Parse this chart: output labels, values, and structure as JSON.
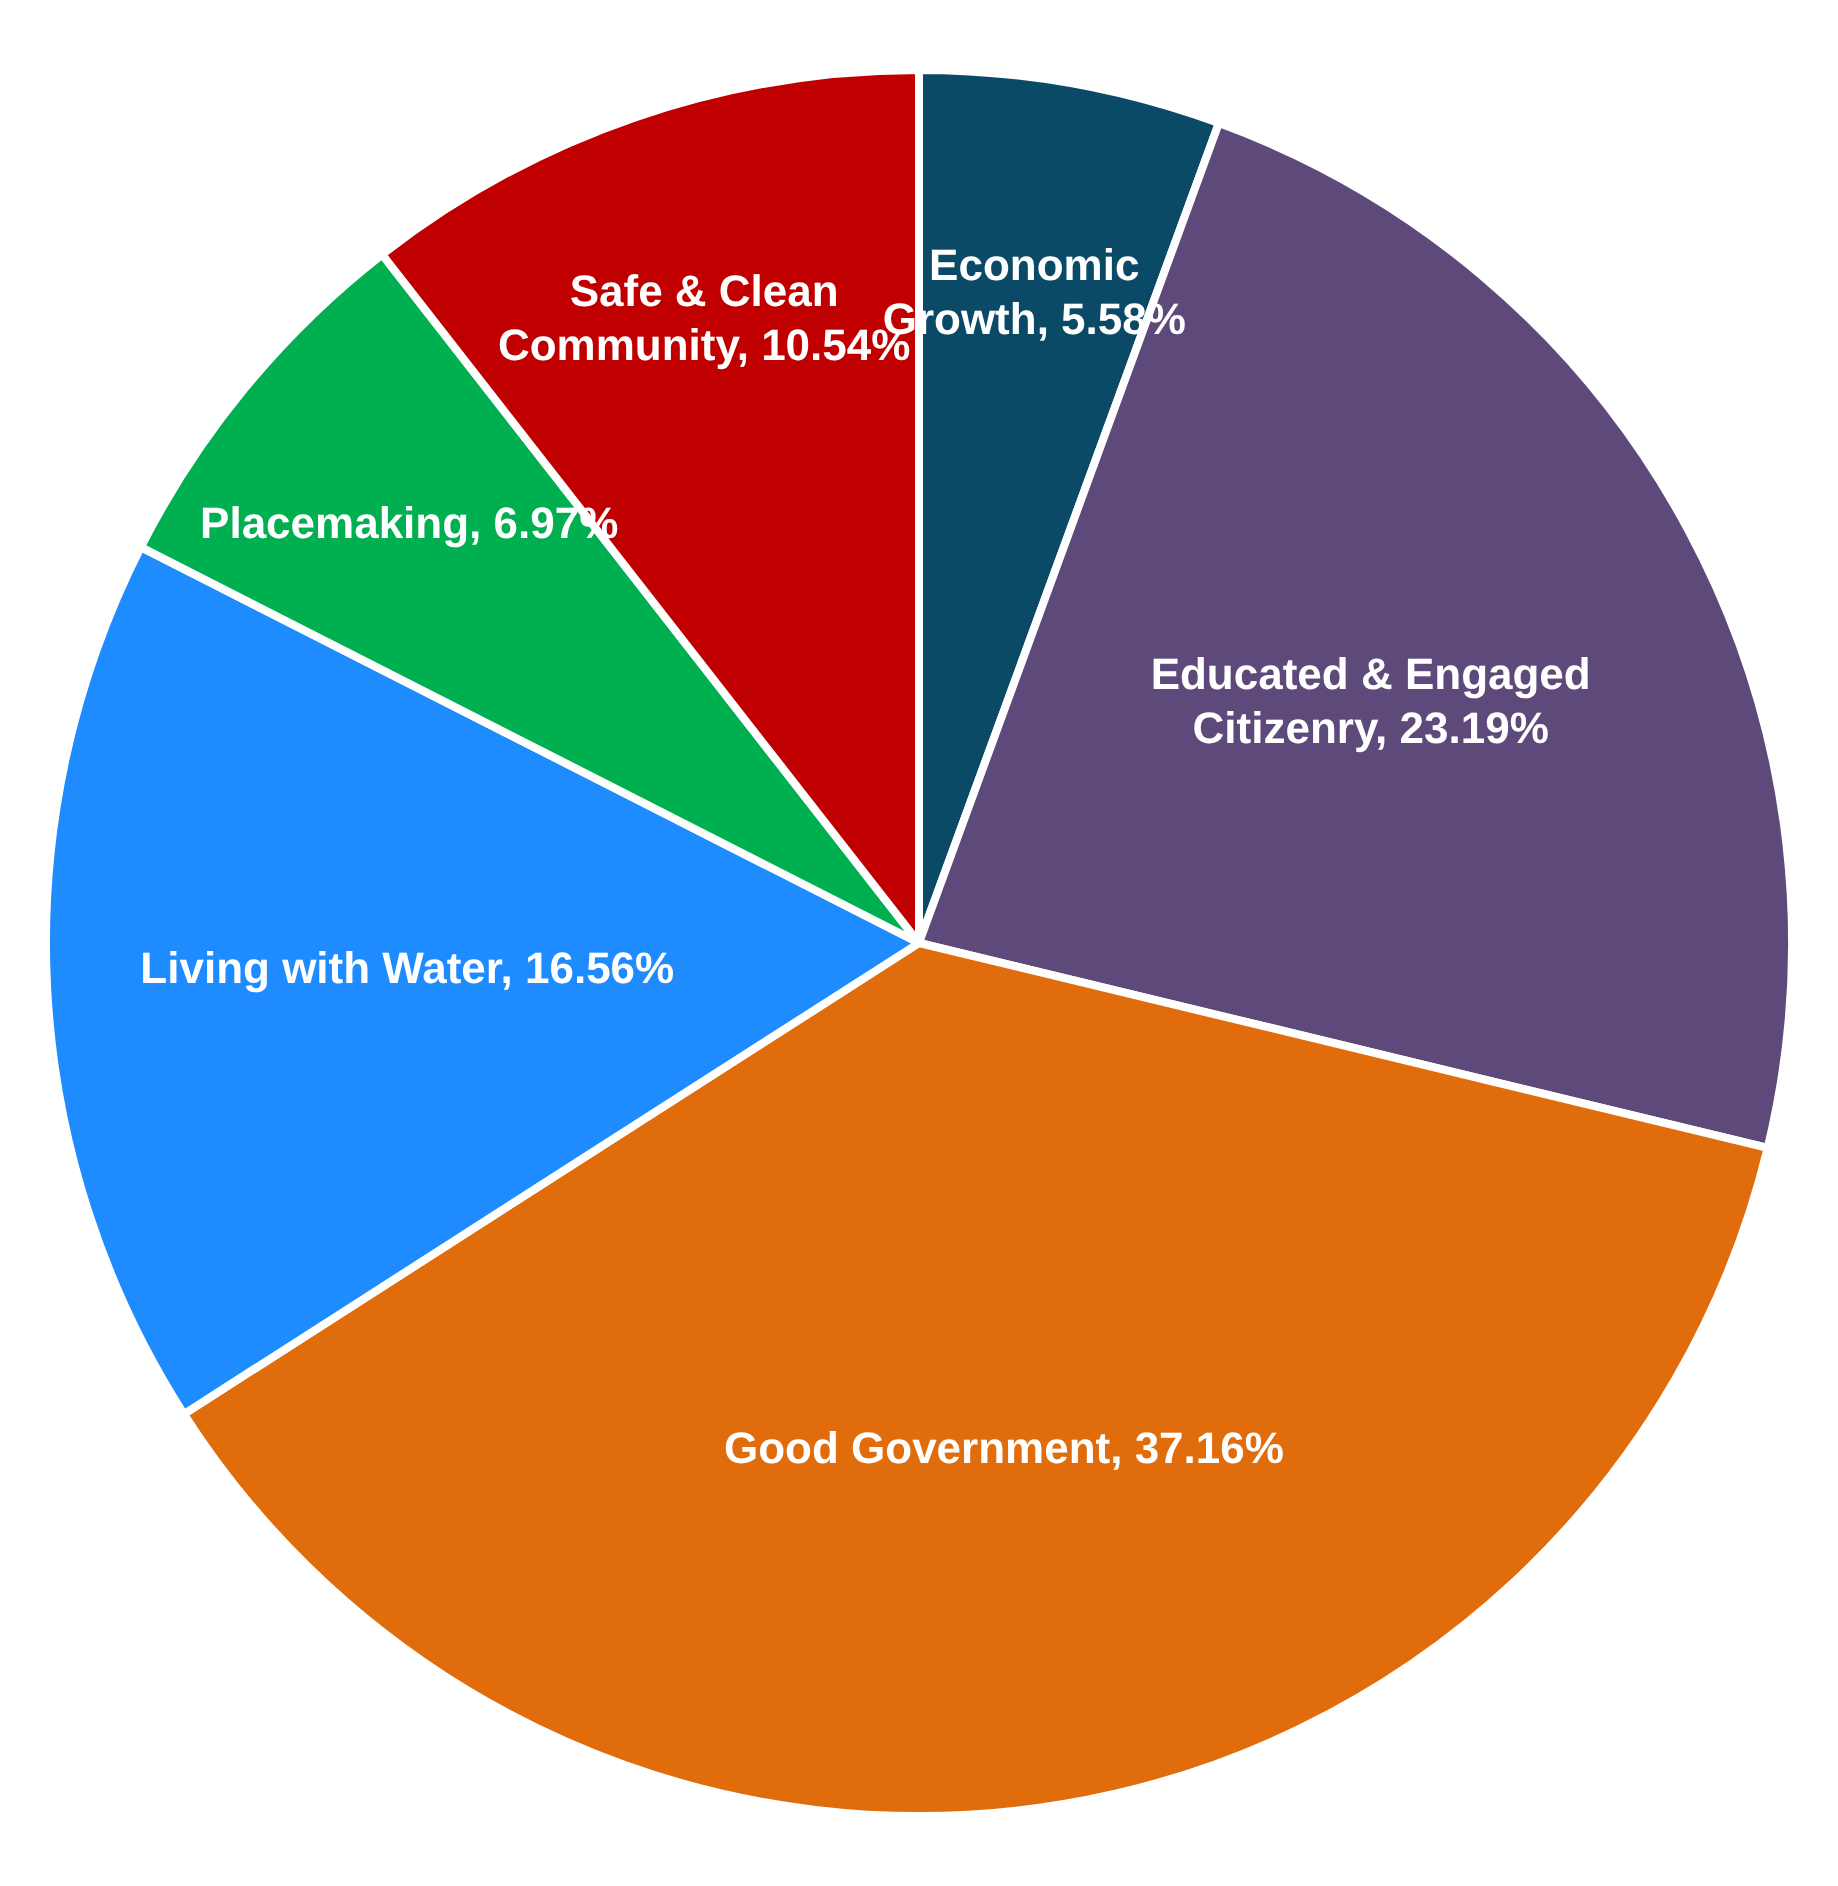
{
  "chart_data": {
    "type": "pie",
    "categories": [
      "Economic Growth",
      "Educated & Engaged Citizenry",
      "Good Government",
      "Living with Water",
      "Placemaking",
      "Safe & Clean Community"
    ],
    "values": [
      5.58,
      23.19,
      37.16,
      16.56,
      6.97,
      10.54
    ],
    "value_labels": [
      "5.58%",
      "23.19%",
      "37.16%",
      "16.56%",
      "6.97%",
      "10.54%"
    ],
    "colors": [
      "#0b4a66",
      "#5e4a7a",
      "#e06c0b",
      "#1e8cff",
      "#00b050",
      "#c00000"
    ],
    "legend": false
  }
}
